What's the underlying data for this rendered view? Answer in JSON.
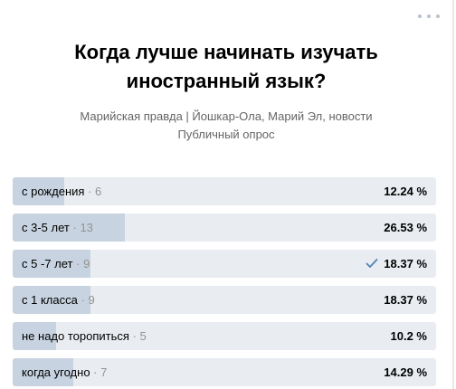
{
  "poll": {
    "question": "Когда лучше начинать изучать иностранный язык?",
    "source": "Марийская правда | Йошкар-Ола, Марий Эл, новости",
    "type": "Публичный опрос",
    "separator": "·",
    "options": [
      {
        "label": "с рождения",
        "count": "6",
        "percent": "12.24 %",
        "fraction": 0.1224,
        "voted": false
      },
      {
        "label": "с 3-5 лет",
        "count": "13",
        "percent": "26.53 %",
        "fraction": 0.2653,
        "voted": false
      },
      {
        "label": "с 5 -7 лет",
        "count": "9",
        "percent": "18.37 %",
        "fraction": 0.1837,
        "voted": true
      },
      {
        "label": "с 1 класса",
        "count": "9",
        "percent": "18.37 %",
        "fraction": 0.1837,
        "voted": false
      },
      {
        "label": "не надо торопиться",
        "count": "5",
        "percent": "10.2 %",
        "fraction": 0.102,
        "voted": false
      },
      {
        "label": "когда угодно",
        "count": "7",
        "percent": "14.29 %",
        "fraction": 0.1429,
        "voted": false
      }
    ]
  },
  "icons": {
    "more": "more-horizontal-icon",
    "check": "checkmark-icon"
  },
  "colors": {
    "track": "#e9edf1",
    "fill": "#c7d3e0",
    "check": "#5181b8",
    "muted": "#939393"
  }
}
